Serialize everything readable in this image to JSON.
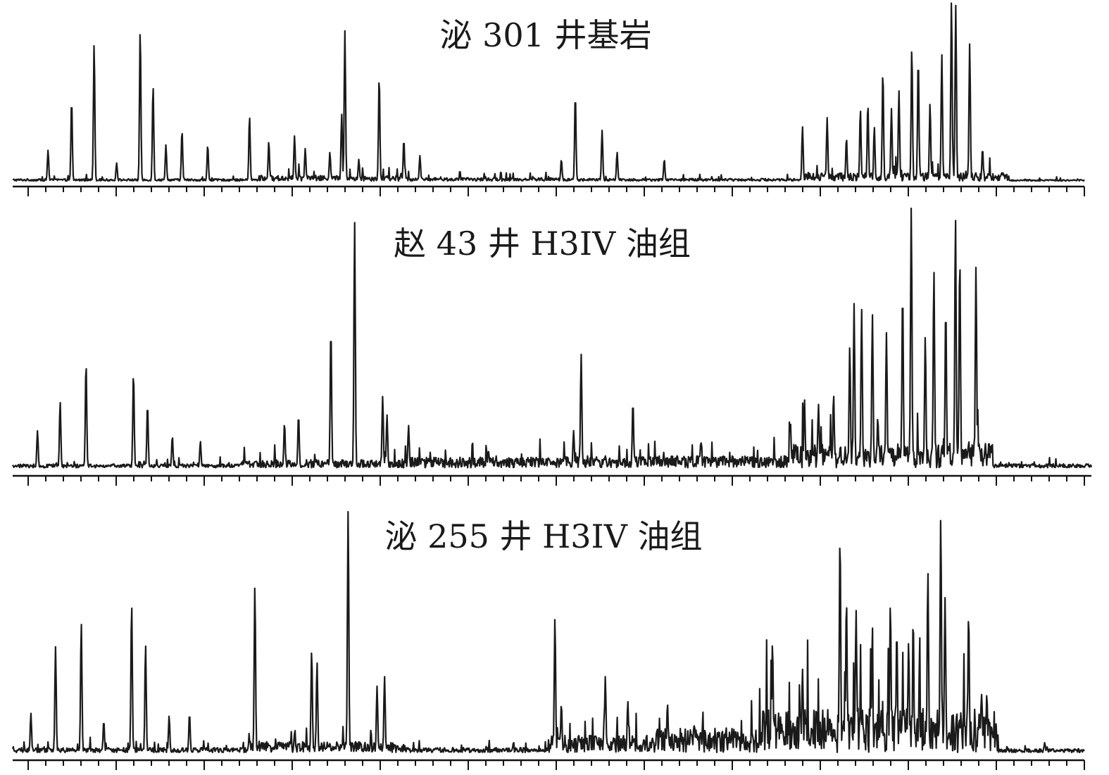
{
  "chart_data": [
    {
      "type": "line",
      "title": "泌 301 井基岩",
      "xlabel": "",
      "ylabel": "",
      "grid": false,
      "line_color": "#1a1a1a",
      "axis_color": "#111111",
      "x_range": [
        0,
        100
      ],
      "ylim": [
        0,
        100
      ],
      "x_ticks": [
        0,
        1.64,
        3.28,
        4.93,
        6.57,
        8.21,
        9.85,
        11.49,
        13.14,
        14.78,
        16.42,
        18.06,
        19.7,
        21.35,
        22.99,
        24.63,
        26.27,
        27.91,
        29.56,
        31.2,
        32.84,
        34.48,
        36.12,
        37.77,
        39.41,
        41.05,
        42.69,
        44.33,
        45.98,
        47.62,
        49.26,
        50.9,
        52.54,
        54.19,
        55.83,
        57.47,
        59.11,
        60.75,
        62.4,
        64.04,
        65.68,
        67.32,
        68.96,
        70.61,
        72.25,
        73.89,
        75.53,
        77.17,
        78.82,
        80.46,
        82.1,
        83.74,
        85.38,
        87.03,
        88.67,
        90.31,
        91.95,
        93.59,
        95.24,
        96.88,
        98.52
      ],
      "x_major_ticks": [
        0,
        8.21,
        16.42,
        24.63,
        32.84,
        41.05,
        51.7,
        62.4,
        72.25,
        82.1,
        92.0
      ],
      "baseline": 1.5,
      "noise_level": 1.2,
      "segments": [
        {
          "from": 0,
          "to": 23,
          "level": 1.2
        },
        {
          "from": 23,
          "to": 37,
          "level": 3.0
        },
        {
          "from": 37,
          "to": 51,
          "level": 1.8
        },
        {
          "from": 51,
          "to": 74,
          "level": 1.4
        },
        {
          "from": 74,
          "to": 93,
          "level": 4.5
        },
        {
          "from": 93,
          "to": 100,
          "level": 0.8
        }
      ],
      "peaks": [
        [
          3.3,
          17
        ],
        [
          5.5,
          45
        ],
        [
          7.6,
          76
        ],
        [
          9.7,
          10
        ],
        [
          11.9,
          84
        ],
        [
          13.1,
          53
        ],
        [
          14.3,
          20
        ],
        [
          15.8,
          28
        ],
        [
          18.2,
          20
        ],
        [
          22.1,
          36
        ],
        [
          23.9,
          22
        ],
        [
          26.3,
          25
        ],
        [
          27.3,
          18
        ],
        [
          29.6,
          16
        ],
        [
          30.7,
          37
        ],
        [
          31.0,
          83
        ],
        [
          32.3,
          12
        ],
        [
          34.2,
          58
        ],
        [
          36.5,
          23
        ],
        [
          38.0,
          14
        ],
        [
          52.5,
          48
        ],
        [
          51.2,
          12
        ],
        [
          55.0,
          28
        ],
        [
          56.4,
          16
        ],
        [
          60.8,
          12
        ],
        [
          73.7,
          30
        ],
        [
          76.0,
          35
        ],
        [
          77.8,
          24
        ],
        [
          79.1,
          40
        ],
        [
          79.8,
          43
        ],
        [
          80.4,
          30
        ],
        [
          81.2,
          61
        ],
        [
          82.0,
          40
        ],
        [
          82.7,
          50
        ],
        [
          83.9,
          74
        ],
        [
          84.5,
          68
        ],
        [
          85.6,
          43
        ],
        [
          86.7,
          70
        ],
        [
          87.6,
          100
        ],
        [
          88.0,
          97
        ],
        [
          89.3,
          76
        ],
        [
          90.5,
          18
        ]
      ]
    },
    {
      "type": "line",
      "title": "赵 43 井 H3IV 油组",
      "xlabel": "",
      "ylabel": "",
      "grid": false,
      "line_color": "#1a1a1a",
      "axis_color": "#111111",
      "x_range": [
        0,
        100
      ],
      "ylim": [
        0,
        100
      ],
      "x_ticks": [
        0,
        1.64,
        3.28,
        4.93,
        6.57,
        8.21,
        9.85,
        11.49,
        13.14,
        14.78,
        16.42,
        18.06,
        19.7,
        21.35,
        22.99,
        24.63,
        26.27,
        27.91,
        29.56,
        31.2,
        32.84,
        34.48,
        36.12,
        37.77,
        39.41,
        41.05,
        42.69,
        44.33,
        45.98,
        47.62,
        49.26,
        50.9,
        52.54,
        54.19,
        55.83,
        57.47,
        59.11,
        60.75,
        62.4,
        64.04,
        65.68,
        67.32,
        68.96,
        70.61,
        72.25,
        73.89,
        75.53,
        77.17,
        78.82,
        80.46,
        82.1,
        83.74,
        85.38,
        87.03,
        88.67,
        90.31,
        91.95,
        93.59,
        95.24,
        96.88,
        98.52
      ],
      "x_major_ticks": [
        0,
        8.21,
        16.42,
        24.63,
        32.84,
        41.05,
        51.7,
        62.4,
        72.25,
        82.1,
        92.0
      ],
      "baseline": 2.0,
      "noise_level": 1.5,
      "segments": [
        {
          "from": 0,
          "to": 21,
          "level": 1.4
        },
        {
          "from": 21,
          "to": 36,
          "level": 3.0
        },
        {
          "from": 36,
          "to": 50,
          "level": 4.0
        },
        {
          "from": 50,
          "to": 72,
          "level": 4.5
        },
        {
          "from": 72,
          "to": 91,
          "level": 9.0
        },
        {
          "from": 91,
          "to": 100,
          "level": 1.5
        }
      ],
      "peaks": [
        [
          2.3,
          14
        ],
        [
          4.4,
          25
        ],
        [
          6.8,
          40
        ],
        [
          11.2,
          36
        ],
        [
          12.5,
          24
        ],
        [
          14.8,
          12
        ],
        [
          17.4,
          10
        ],
        [
          25.2,
          17
        ],
        [
          26.5,
          20
        ],
        [
          29.5,
          53
        ],
        [
          31.7,
          93
        ],
        [
          34.3,
          27
        ],
        [
          34.7,
          20
        ],
        [
          36.7,
          16
        ],
        [
          52.7,
          43
        ],
        [
          52.0,
          14
        ],
        [
          57.5,
          25
        ],
        [
          63.8,
          10
        ],
        [
          72.1,
          17
        ],
        [
          73.4,
          26
        ],
        [
          74.7,
          24
        ],
        [
          76.1,
          28
        ],
        [
          77.6,
          46
        ],
        [
          78.0,
          62
        ],
        [
          78.7,
          60
        ],
        [
          79.7,
          58
        ],
        [
          81.0,
          51
        ],
        [
          82.5,
          67
        ],
        [
          83.3,
          100
        ],
        [
          84.6,
          50
        ],
        [
          85.4,
          75
        ],
        [
          86.5,
          61
        ],
        [
          87.4,
          95
        ],
        [
          87.8,
          80
        ],
        [
          89.3,
          76
        ],
        [
          90.5,
          10
        ]
      ]
    },
    {
      "type": "line",
      "title": "泌 255 井 H3IV 油组",
      "xlabel": "",
      "ylabel": "",
      "grid": false,
      "line_color": "#1a1a1a",
      "axis_color": "#111111",
      "x_range": [
        0,
        100
      ],
      "ylim": [
        0,
        100
      ],
      "x_ticks": [
        0,
        1.64,
        3.28,
        4.93,
        6.57,
        8.21,
        9.85,
        11.49,
        13.14,
        14.78,
        16.42,
        18.06,
        19.7,
        21.35,
        22.99,
        24.63,
        26.27,
        27.91,
        29.56,
        31.2,
        32.84,
        34.48,
        36.12,
        37.77,
        39.41,
        41.05,
        42.69,
        44.33,
        45.98,
        47.62,
        49.26,
        50.9,
        52.54,
        54.19,
        55.83,
        57.47,
        59.11,
        60.75,
        62.4,
        64.04,
        65.68,
        67.32,
        68.96,
        70.61,
        72.25,
        73.89,
        75.53,
        77.17,
        78.82,
        80.46,
        82.1,
        83.74,
        85.38,
        87.03,
        88.67,
        90.31,
        91.95,
        93.59,
        95.24,
        96.88,
        98.52
      ],
      "x_major_ticks": [
        0,
        8.21,
        16.42,
        24.63,
        32.84,
        41.05,
        51.7,
        62.4,
        72.25,
        82.1,
        92.0
      ],
      "baseline": 2.0,
      "noise_level": 1.8,
      "segments": [
        {
          "from": 0,
          "to": 22,
          "level": 2.0
        },
        {
          "from": 22,
          "to": 36,
          "level": 4.5
        },
        {
          "from": 36,
          "to": 50,
          "level": 2.0
        },
        {
          "from": 50,
          "to": 60,
          "level": 7.0
        },
        {
          "from": 60,
          "to": 70,
          "level": 10.0
        },
        {
          "from": 70,
          "to": 92,
          "level": 18.0
        },
        {
          "from": 92,
          "to": 100,
          "level": 1.5
        }
      ],
      "peaks": [
        [
          1.7,
          16
        ],
        [
          4.0,
          43
        ],
        [
          6.4,
          53
        ],
        [
          8.5,
          13
        ],
        [
          11.1,
          61
        ],
        [
          12.4,
          44
        ],
        [
          14.6,
          15
        ],
        [
          16.5,
          16
        ],
        [
          22.6,
          68
        ],
        [
          27.9,
          42
        ],
        [
          28.4,
          37
        ],
        [
          31.3,
          100
        ],
        [
          34.0,
          27
        ],
        [
          34.7,
          31
        ],
        [
          50.6,
          55
        ],
        [
          51.2,
          20
        ],
        [
          55.3,
          31
        ],
        [
          57.4,
          21
        ],
        [
          61.1,
          20
        ],
        [
          70.9,
          45
        ],
        [
          73.7,
          34
        ],
        [
          77.2,
          89
        ],
        [
          77.8,
          63
        ],
        [
          78.7,
          58
        ],
        [
          80.2,
          42
        ],
        [
          81.9,
          61
        ],
        [
          82.5,
          50
        ],
        [
          83.6,
          45
        ],
        [
          85.4,
          74
        ],
        [
          86.6,
          96
        ],
        [
          87.0,
          63
        ],
        [
          89.2,
          57
        ],
        [
          90.4,
          24
        ],
        [
          90.9,
          24
        ],
        [
          96.3,
          4
        ]
      ]
    }
  ]
}
